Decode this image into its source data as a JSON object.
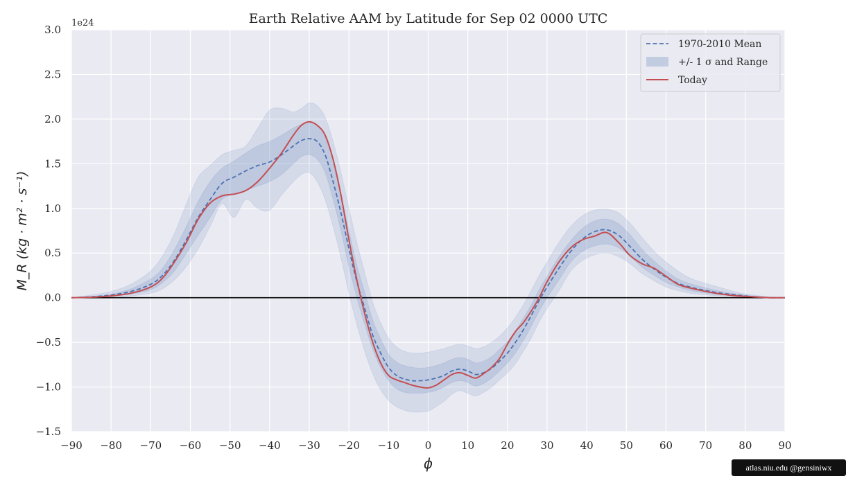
{
  "chart_data": {
    "type": "line",
    "title": "Earth Relative AAM by Latitude for Sep 02 0000 UTC",
    "xlabel": "ϕ",
    "ylabel": "M_R (kg · m² · s⁻¹)",
    "y_offset_label": "1e24",
    "xlim": [
      -90,
      90
    ],
    "ylim": [
      -1.5,
      3.0
    ],
    "xticks": [
      -90,
      -80,
      -70,
      -60,
      -50,
      -40,
      -30,
      -20,
      -10,
      0,
      10,
      20,
      30,
      40,
      50,
      60,
      70,
      80,
      90
    ],
    "xtick_labels": [
      "−90",
      "−80",
      "−70",
      "−60",
      "−50",
      "−40",
      "−30",
      "−20",
      "−10",
      "0",
      "10",
      "20",
      "30",
      "40",
      "50",
      "60",
      "70",
      "80",
      "90"
    ],
    "yticks": [
      -1.5,
      -1.0,
      -0.5,
      0.0,
      0.5,
      1.0,
      1.5,
      2.0,
      2.5,
      3.0
    ],
    "ytick_labels": [
      "−1.5",
      "−1.0",
      "−0.5",
      "0.0",
      "0.5",
      "1.0",
      "1.5",
      "2.0",
      "2.5",
      "3.0"
    ],
    "grid": true,
    "zero_line": true,
    "legend_position": "top-right",
    "legend": [
      "1970-2010 Mean",
      "+/- 1 σ and Range",
      "Today"
    ],
    "colors": {
      "mean": "#4c72b0",
      "band": "#4c72b0",
      "today": "#c44e52",
      "background": "#eaeaf2",
      "grid": "#ffffff"
    },
    "x": [
      -90,
      -85,
      -80,
      -75,
      -70,
      -67,
      -64,
      -61,
      -58,
      -55,
      -52,
      -49,
      -46,
      -43,
      -40,
      -37,
      -34,
      -32,
      -30,
      -28,
      -26,
      -24,
      -22,
      -20,
      -18,
      -16,
      -14,
      -12,
      -10,
      -8,
      -6,
      -4,
      -2,
      0,
      2,
      4,
      6,
      8,
      10,
      12,
      14,
      16,
      18,
      20,
      22,
      24,
      26,
      28,
      30,
      33,
      36,
      39,
      42,
      45,
      48,
      51,
      54,
      57,
      60,
      63,
      66,
      70,
      74,
      78,
      82,
      86,
      90
    ],
    "series": [
      {
        "name": "1970-2010 Mean",
        "style": "dashed",
        "values": [
          0.0,
          0.01,
          0.03,
          0.07,
          0.15,
          0.25,
          0.42,
          0.65,
          0.9,
          1.1,
          1.28,
          1.35,
          1.42,
          1.48,
          1.52,
          1.6,
          1.7,
          1.76,
          1.78,
          1.75,
          1.6,
          1.3,
          0.95,
          0.55,
          0.18,
          -0.12,
          -0.42,
          -0.62,
          -0.78,
          -0.87,
          -0.91,
          -0.93,
          -0.93,
          -0.92,
          -0.9,
          -0.87,
          -0.82,
          -0.8,
          -0.82,
          -0.86,
          -0.84,
          -0.79,
          -0.71,
          -0.62,
          -0.5,
          -0.36,
          -0.2,
          -0.03,
          0.12,
          0.33,
          0.52,
          0.66,
          0.74,
          0.76,
          0.7,
          0.57,
          0.43,
          0.32,
          0.23,
          0.16,
          0.12,
          0.08,
          0.05,
          0.03,
          0.01,
          0.0,
          0.0
        ]
      },
      {
        "name": "Today",
        "style": "solid",
        "values": [
          0.0,
          0.005,
          0.02,
          0.05,
          0.12,
          0.22,
          0.4,
          0.62,
          0.88,
          1.06,
          1.14,
          1.16,
          1.2,
          1.3,
          1.45,
          1.62,
          1.82,
          1.93,
          1.97,
          1.93,
          1.82,
          1.55,
          1.15,
          0.65,
          0.2,
          -0.18,
          -0.5,
          -0.73,
          -0.87,
          -0.92,
          -0.95,
          -0.98,
          -1.0,
          -1.01,
          -0.98,
          -0.92,
          -0.86,
          -0.84,
          -0.87,
          -0.9,
          -0.85,
          -0.78,
          -0.68,
          -0.52,
          -0.38,
          -0.28,
          -0.15,
          0.0,
          0.18,
          0.4,
          0.56,
          0.65,
          0.69,
          0.73,
          0.62,
          0.47,
          0.38,
          0.33,
          0.24,
          0.15,
          0.11,
          0.07,
          0.04,
          0.02,
          0.01,
          0.0,
          0.0
        ]
      }
    ],
    "band_inner": {
      "name": "+/- 1 σ",
      "lower": [
        0.0,
        0.005,
        0.02,
        0.04,
        0.09,
        0.17,
        0.3,
        0.5,
        0.7,
        0.9,
        1.1,
        1.16,
        1.2,
        1.25,
        1.3,
        1.38,
        1.5,
        1.58,
        1.6,
        1.55,
        1.4,
        1.1,
        0.75,
        0.35,
        0.0,
        -0.3,
        -0.58,
        -0.78,
        -0.93,
        -1.02,
        -1.06,
        -1.07,
        -1.07,
        -1.06,
        -1.04,
        -1.0,
        -0.95,
        -0.93,
        -0.95,
        -0.99,
        -0.96,
        -0.9,
        -0.82,
        -0.73,
        -0.62,
        -0.48,
        -0.32,
        -0.15,
        0.0,
        0.2,
        0.4,
        0.52,
        0.58,
        0.6,
        0.56,
        0.46,
        0.34,
        0.25,
        0.17,
        0.12,
        0.08,
        0.05,
        0.03,
        0.02,
        0.01,
        0.0,
        0.0
      ],
      "upper": [
        0.0,
        0.015,
        0.04,
        0.1,
        0.21,
        0.33,
        0.54,
        0.8,
        1.08,
        1.3,
        1.45,
        1.53,
        1.62,
        1.7,
        1.75,
        1.82,
        1.9,
        1.94,
        1.96,
        1.94,
        1.8,
        1.5,
        1.15,
        0.75,
        0.36,
        0.06,
        -0.25,
        -0.46,
        -0.63,
        -0.72,
        -0.76,
        -0.78,
        -0.79,
        -0.78,
        -0.76,
        -0.73,
        -0.69,
        -0.67,
        -0.69,
        -0.73,
        -0.71,
        -0.66,
        -0.58,
        -0.49,
        -0.37,
        -0.23,
        -0.08,
        0.09,
        0.24,
        0.46,
        0.64,
        0.78,
        0.86,
        0.88,
        0.83,
        0.7,
        0.54,
        0.41,
        0.3,
        0.21,
        0.16,
        0.11,
        0.07,
        0.04,
        0.02,
        0.005,
        0.0
      ]
    },
    "band_outer": {
      "name": "Range",
      "lower": [
        0.0,
        0.0,
        0.005,
        0.02,
        0.05,
        0.1,
        0.2,
        0.35,
        0.55,
        0.8,
        1.05,
        0.9,
        1.1,
        1.0,
        0.98,
        1.15,
        1.3,
        1.38,
        1.4,
        1.3,
        1.1,
        0.8,
        0.45,
        0.05,
        -0.3,
        -0.6,
        -0.85,
        -1.03,
        -1.15,
        -1.22,
        -1.26,
        -1.28,
        -1.28,
        -1.27,
        -1.22,
        -1.16,
        -1.08,
        -1.04,
        -1.07,
        -1.1,
        -1.06,
        -1.0,
        -0.92,
        -0.84,
        -0.74,
        -0.6,
        -0.45,
        -0.27,
        -0.12,
        0.08,
        0.3,
        0.42,
        0.48,
        0.5,
        0.46,
        0.38,
        0.27,
        0.19,
        0.12,
        0.08,
        0.05,
        0.03,
        0.02,
        0.01,
        0.0,
        0.0,
        0.0
      ],
      "upper": [
        0.0,
        0.03,
        0.07,
        0.15,
        0.3,
        0.47,
        0.72,
        1.05,
        1.35,
        1.48,
        1.6,
        1.65,
        1.7,
        1.9,
        2.1,
        2.12,
        2.08,
        2.12,
        2.18,
        2.15,
        2.02,
        1.75,
        1.4,
        1.0,
        0.62,
        0.28,
        -0.05,
        -0.28,
        -0.45,
        -0.55,
        -0.6,
        -0.62,
        -0.62,
        -0.61,
        -0.59,
        -0.57,
        -0.54,
        -0.52,
        -0.54,
        -0.57,
        -0.55,
        -0.5,
        -0.43,
        -0.34,
        -0.22,
        -0.08,
        0.08,
        0.25,
        0.4,
        0.62,
        0.8,
        0.92,
        0.98,
        0.99,
        0.95,
        0.83,
        0.67,
        0.52,
        0.4,
        0.3,
        0.22,
        0.16,
        0.11,
        0.06,
        0.03,
        0.01,
        0.0
      ]
    }
  },
  "credit": "atlas.niu.edu  @gensiniwx"
}
